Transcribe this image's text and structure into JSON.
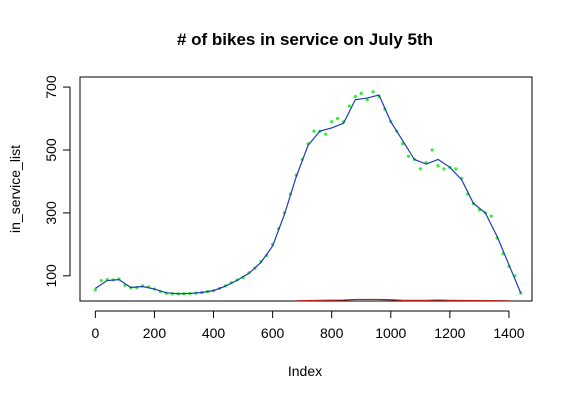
{
  "chart_data": {
    "type": "line",
    "title": "# of bikes in service on July 5th",
    "xlabel": "Index",
    "ylabel": "in_service_list",
    "xlim": [
      -52,
      1478
    ],
    "ylim": [
      20,
      732
    ],
    "xticks": [
      0,
      200,
      400,
      600,
      800,
      1000,
      1200,
      1400
    ],
    "yticks": [
      100,
      300,
      500,
      700
    ],
    "series": [
      {
        "style": "points",
        "color": "#33ee33",
        "x": [
          0,
          20,
          40,
          60,
          80,
          100,
          120,
          140,
          160,
          180,
          200,
          220,
          240,
          260,
          280,
          300,
          320,
          340,
          360,
          380,
          400,
          420,
          440,
          460,
          480,
          500,
          520,
          540,
          560,
          580,
          600,
          620,
          640,
          660,
          680,
          700,
          720,
          740,
          760,
          780,
          800,
          820,
          840,
          860,
          880,
          900,
          920,
          940,
          960,
          980,
          1000,
          1020,
          1040,
          1060,
          1080,
          1100,
          1120,
          1140,
          1160,
          1180,
          1200,
          1220,
          1240,
          1260,
          1280,
          1300,
          1320,
          1340,
          1360,
          1380,
          1400,
          1420,
          1440
        ],
        "values": [
          55,
          85,
          88,
          87,
          90,
          70,
          62,
          63,
          68,
          65,
          58,
          50,
          45,
          43,
          43,
          43,
          44,
          45,
          47,
          50,
          53,
          60,
          68,
          78,
          87,
          95,
          110,
          125,
          145,
          165,
          200,
          250,
          300,
          360,
          420,
          470,
          520,
          560,
          560,
          550,
          590,
          600,
          590,
          640,
          670,
          680,
          660,
          685,
          670,
          630,
          590,
          560,
          520,
          480,
          470,
          440,
          460,
          500,
          450,
          440,
          445,
          440,
          410,
          360,
          330,
          310,
          300,
          290,
          220,
          170,
          130,
          100,
          45
        ]
      },
      {
        "style": "line",
        "color": "#1e3cb4",
        "x": [
          0,
          40,
          80,
          120,
          160,
          200,
          240,
          280,
          320,
          360,
          400,
          440,
          480,
          520,
          560,
          600,
          640,
          680,
          720,
          760,
          800,
          840,
          880,
          920,
          960,
          1000,
          1040,
          1080,
          1120,
          1160,
          1200,
          1240,
          1280,
          1320,
          1360,
          1400,
          1440
        ],
        "values": [
          60,
          85,
          88,
          63,
          66,
          58,
          46,
          43,
          44,
          47,
          53,
          67,
          86,
          108,
          142,
          195,
          295,
          415,
          515,
          560,
          570,
          585,
          660,
          665,
          675,
          590,
          530,
          470,
          455,
          470,
          445,
          405,
          330,
          300,
          225,
          135,
          45
        ]
      },
      {
        "style": "line",
        "color": "#b22222",
        "x": [
          680,
          760,
          840,
          880,
          920,
          960,
          1000,
          1040,
          1120,
          1160,
          1200,
          1400
        ],
        "values": [
          21,
          22,
          23,
          25,
          25,
          25,
          24,
          22,
          22,
          23,
          22,
          21
        ]
      }
    ]
  }
}
